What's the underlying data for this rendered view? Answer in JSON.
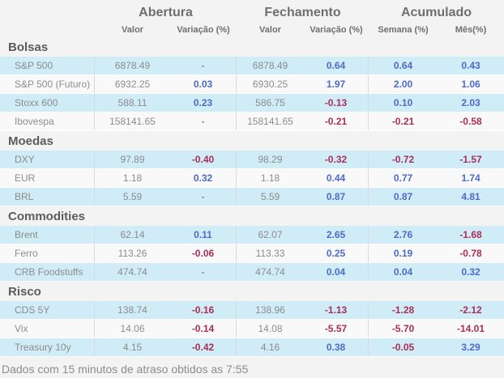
{
  "header": {
    "groups": [
      {
        "label": "Abertura",
        "sub": [
          "Valor",
          "Variação (%)"
        ]
      },
      {
        "label": "Fechamento",
        "sub": [
          "Valor",
          "Variação (%)"
        ]
      },
      {
        "label": "Acumulado",
        "sub": [
          "Semana (%)",
          "Mês(%)"
        ]
      }
    ]
  },
  "chart_data": {
    "type": "table",
    "column_groups": [
      "Abertura",
      "Fechamento",
      "Acumulado"
    ],
    "columns": [
      "",
      "Valor",
      "Variação (%)",
      "Valor",
      "Variação (%)",
      "Semana (%)",
      "Mês(%)"
    ],
    "sections": [
      {
        "title": "Bolsas",
        "rows": [
          [
            "S&P 500",
            "6878.49",
            "-",
            "6878.49",
            "0.64",
            "0.64",
            "0.43"
          ],
          [
            "S&P 500 (Futuro)",
            "6932.25",
            "0.03",
            "6930.25",
            "1.97",
            "2.00",
            "1.06"
          ],
          [
            "Stoxx 600",
            "588.11",
            "0.23",
            "586.75",
            "-0.13",
            "0.10",
            "2.03"
          ],
          [
            "Ibovespa",
            "158141.65",
            "-",
            "158141.65",
            "-0.21",
            "-0.21",
            "-0.58"
          ]
        ]
      },
      {
        "title": "Moedas",
        "rows": [
          [
            "DXY",
            "97.89",
            "-0.40",
            "98.29",
            "-0.32",
            "-0.72",
            "-1.57"
          ],
          [
            "EUR",
            "1.18",
            "0.32",
            "1.18",
            "0.44",
            "0.77",
            "1.74"
          ],
          [
            "BRL",
            "5.59",
            "-",
            "5.59",
            "0.87",
            "0.87",
            "4.81"
          ]
        ]
      },
      {
        "title": "Commodities",
        "rows": [
          [
            "Brent",
            "62.14",
            "0.11",
            "62.07",
            "2.65",
            "2.76",
            "-1.68"
          ],
          [
            "Ferro",
            "113.26",
            "-0.06",
            "113.33",
            "0.25",
            "0.19",
            "-0.78"
          ],
          [
            "CRB Foodstuffs",
            "474.74",
            "-",
            "474.74",
            "0.04",
            "0.04",
            "0.32"
          ]
        ]
      },
      {
        "title": "Risco",
        "rows": [
          [
            "CDS 5Y",
            "138.74",
            "-0.16",
            "138.96",
            "-1.13",
            "-1.28",
            "-2.12"
          ],
          [
            "Vix",
            "14.06",
            "-0.14",
            "14.08",
            "-5.57",
            "-5.70",
            "-14.01"
          ],
          [
            "Treasury 10y",
            "4.15",
            "-0.42",
            "4.16",
            "0.38",
            "-0.05",
            "3.29"
          ]
        ]
      }
    ]
  },
  "footer": {
    "note": "Dados com 15 minutos de atraso obtidos as 7:55"
  },
  "colors": {
    "positive_text": "#4d6bca",
    "negative_text": "#aa2e57",
    "neutral_text": "#8c8c8c",
    "highlight_row_bg": "#cfecf7",
    "plain_row_bg": "#f9f9f9",
    "header_text": "#6f6f6f",
    "section_title_text": "#5c5c5c",
    "separator": "#d9d9d9",
    "page_bg": "#f3f3f3"
  }
}
